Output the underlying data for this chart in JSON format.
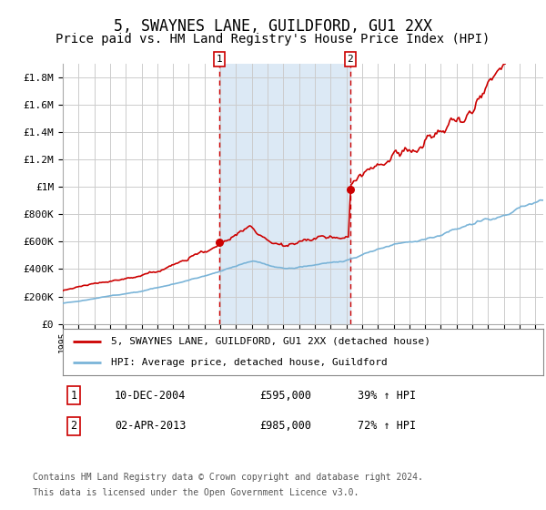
{
  "title": "5, SWAYNES LANE, GUILDFORD, GU1 2XX",
  "subtitle": "Price paid vs. HM Land Registry's House Price Index (HPI)",
  "title_fontsize": 12,
  "subtitle_fontsize": 10,
  "background_color": "#ffffff",
  "plot_bg_color": "#ffffff",
  "grid_color": "#cccccc",
  "y_labels": [
    "£0",
    "£200K",
    "£400K",
    "£600K",
    "£800K",
    "£1M",
    "£1.2M",
    "£1.4M",
    "£1.6M",
    "£1.8M"
  ],
  "y_values": [
    0,
    200000,
    400000,
    600000,
    800000,
    1000000,
    1200000,
    1400000,
    1600000,
    1800000
  ],
  "ylim": [
    0,
    1900000
  ],
  "x_start_year": 1995,
  "x_end_year": 2025,
  "sale1_year": 2004.92,
  "sale1_price": 595000,
  "sale1_label": "10-DEC-2004",
  "sale2_year": 2013.25,
  "sale2_price": 985000,
  "sale2_label": "02-APR-2013",
  "shade_color": "#dce9f5",
  "sale_dot_color": "#cc0000",
  "hpi_line_color": "#7ab4d8",
  "price_line_color": "#cc0000",
  "marker_box_color": "#cc0000",
  "legend_line1": "5, SWAYNES LANE, GUILDFORD, GU1 2XX (detached house)",
  "legend_line2": "HPI: Average price, detached house, Guildford",
  "footer1": "Contains HM Land Registry data © Crown copyright and database right 2024.",
  "footer2": "This data is licensed under the Open Government Licence v3.0.",
  "table_row1": [
    "1",
    "10-DEC-2004",
    "£595,000",
    "39% ↑ HPI"
  ],
  "table_row2": [
    "2",
    "02-APR-2013",
    "£985,000",
    "72% ↑ HPI"
  ]
}
